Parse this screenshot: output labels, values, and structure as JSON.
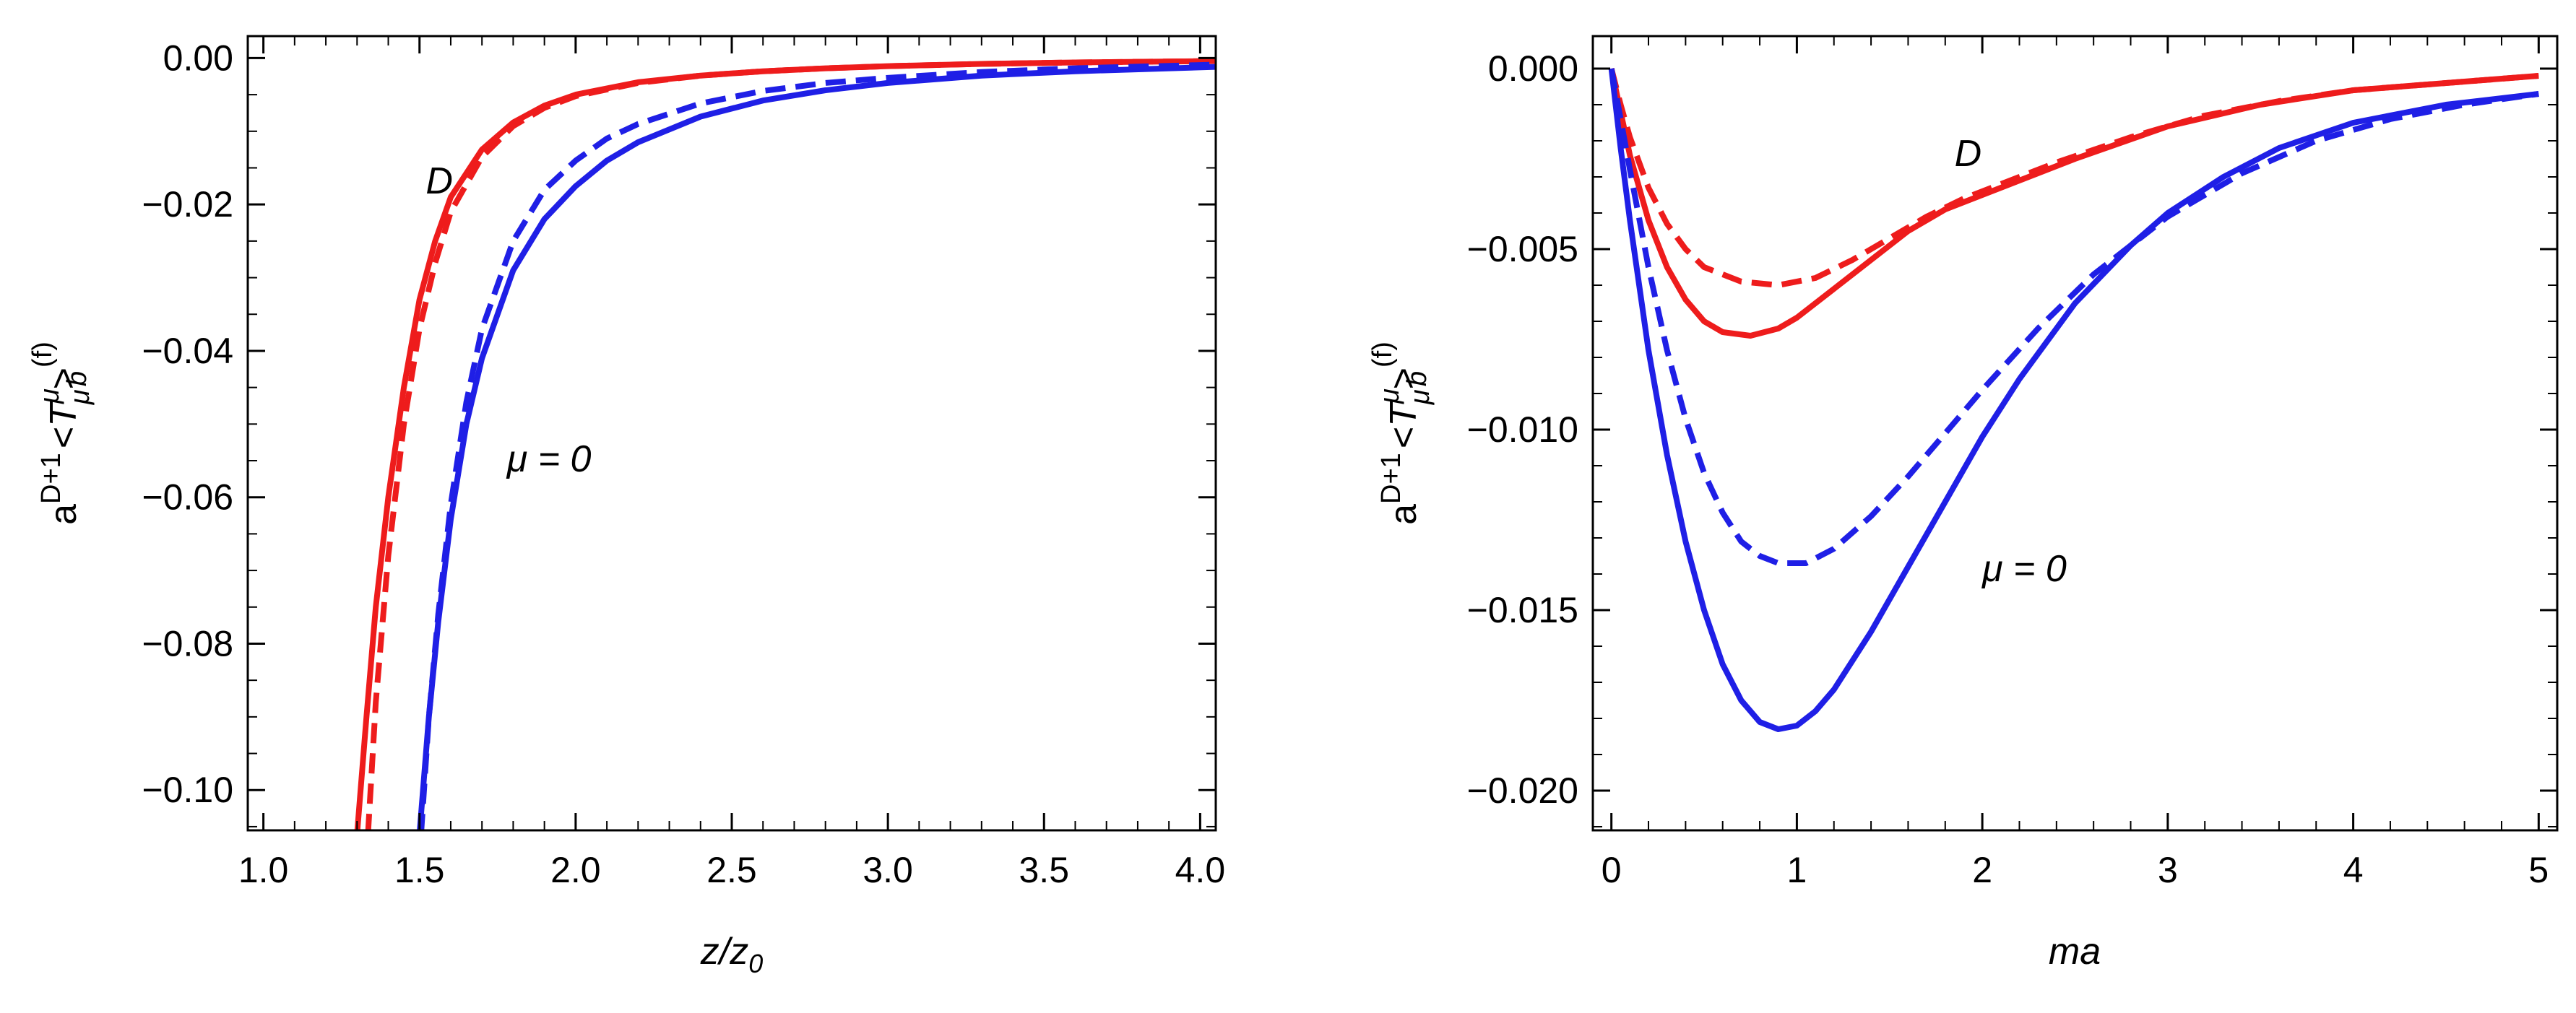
{
  "figure": {
    "colors": {
      "red": "#ee1c1c",
      "blue": "#1f1fe6",
      "frame": "#000000"
    }
  },
  "chart_data": [
    {
      "type": "line",
      "panel": "left",
      "xlabel": "z/z",
      "xlabel_sub": "0",
      "ylabel": {
        "base": "a",
        "base_sup": "D+1",
        "bracket_open": "<",
        "core": "T",
        "core_sup": "μ",
        "core_sub": "μ",
        "bracket_close": ">",
        "outer_sup": "(f)",
        "outer_sub": "b"
      },
      "xlim": [
        0.95,
        4.05
      ],
      "ylim": [
        -0.1055,
        0.003
      ],
      "xticks": [
        1.0,
        1.5,
        2.0,
        2.5,
        3.0,
        3.5,
        4.0
      ],
      "xtick_labels": [
        "1.0",
        "1.5",
        "2.0",
        "2.5",
        "3.0",
        "3.5",
        "4.0"
      ],
      "yticks": [
        0.0,
        -0.02,
        -0.04,
        -0.06,
        -0.08,
        -0.1
      ],
      "ytick_labels": [
        "0.00",
        "−0.02",
        "−0.04",
        "−0.06",
        "−0.08",
        "−0.10"
      ],
      "annotations": [
        {
          "text": "D",
          "x": 1.52,
          "y": -0.0185
        },
        {
          "text": "μ = 0",
          "x": 1.78,
          "y": -0.0565
        }
      ],
      "series": [
        {
          "name": "D, solid",
          "color": "red",
          "style": "solid",
          "x": [
            1.3,
            1.33,
            1.36,
            1.4,
            1.45,
            1.5,
            1.55,
            1.6,
            1.7,
            1.8,
            1.9,
            2.0,
            2.2,
            2.4,
            2.6,
            2.8,
            3.0,
            3.3,
            3.6,
            4.05
          ],
          "y": [
            -0.106,
            -0.09,
            -0.075,
            -0.06,
            -0.045,
            -0.033,
            -0.025,
            -0.019,
            -0.0125,
            -0.0088,
            -0.0065,
            -0.005,
            -0.0033,
            -0.0024,
            -0.0018,
            -0.0014,
            -0.0011,
            -0.0008,
            -0.0006,
            -0.0004
          ]
        },
        {
          "name": "D, dashed",
          "color": "red",
          "style": "dashed",
          "x": [
            1.335,
            1.36,
            1.4,
            1.45,
            1.5,
            1.55,
            1.6,
            1.7,
            1.8,
            1.9,
            2.0,
            2.2,
            2.4,
            2.6,
            2.8,
            3.0,
            3.3,
            3.6,
            4.05
          ],
          "y": [
            -0.106,
            -0.088,
            -0.068,
            -0.05,
            -0.037,
            -0.028,
            -0.021,
            -0.0135,
            -0.0093,
            -0.0068,
            -0.0052,
            -0.0034,
            -0.0024,
            -0.0018,
            -0.0014,
            -0.0011,
            -0.0008,
            -0.0006,
            -0.0004
          ]
        },
        {
          "name": "μ = 0, solid",
          "color": "blue",
          "style": "solid",
          "x": [
            1.5,
            1.53,
            1.56,
            1.6,
            1.65,
            1.7,
            1.8,
            1.9,
            2.0,
            2.1,
            2.2,
            2.4,
            2.6,
            2.8,
            3.0,
            3.3,
            3.6,
            4.05
          ],
          "y": [
            -0.106,
            -0.09,
            -0.077,
            -0.063,
            -0.05,
            -0.041,
            -0.029,
            -0.022,
            -0.0175,
            -0.014,
            -0.0115,
            -0.008,
            -0.0058,
            -0.0044,
            -0.0034,
            -0.0024,
            -0.0018,
            -0.0012
          ]
        },
        {
          "name": "μ = 0, dashed",
          "color": "blue",
          "style": "dashed",
          "x": [
            1.505,
            1.53,
            1.56,
            1.6,
            1.65,
            1.7,
            1.8,
            1.9,
            2.0,
            2.1,
            2.2,
            2.4,
            2.6,
            2.8,
            3.0,
            3.3,
            3.6,
            4.05
          ],
          "y": [
            -0.106,
            -0.09,
            -0.076,
            -0.061,
            -0.047,
            -0.037,
            -0.025,
            -0.018,
            -0.014,
            -0.011,
            -0.009,
            -0.0062,
            -0.0045,
            -0.0034,
            -0.0027,
            -0.0019,
            -0.0014,
            -0.0009
          ]
        }
      ]
    },
    {
      "type": "line",
      "panel": "right",
      "xlabel": "ma",
      "ylabel": {
        "base": "a",
        "base_sup": "D+1",
        "bracket_open": "<",
        "core": "T",
        "core_sup": "μ",
        "core_sub": "μ",
        "bracket_close": ">",
        "outer_sup": "(f)",
        "outer_sub": "b"
      },
      "xlim": [
        -0.1,
        5.1
      ],
      "ylim": [
        -0.0211,
        0.0009
      ],
      "xticks": [
        0,
        1,
        2,
        3,
        4,
        5
      ],
      "xtick_labels": [
        "0",
        "1",
        "2",
        "3",
        "4",
        "5"
      ],
      "yticks": [
        0.0,
        -0.005,
        -0.01,
        -0.015,
        -0.02
      ],
      "ytick_labels": [
        "0.000",
        "−0.005",
        "−0.010",
        "−0.015",
        "−0.020"
      ],
      "annotations": [
        {
          "text": "D",
          "x": 1.85,
          "y": -0.0027
        },
        {
          "text": "μ = 0",
          "x": 2.0,
          "y": -0.0142
        }
      ],
      "series": [
        {
          "name": "D, solid",
          "color": "red",
          "style": "solid",
          "x": [
            0.0,
            0.05,
            0.1,
            0.2,
            0.3,
            0.4,
            0.5,
            0.6,
            0.75,
            0.9,
            1.0,
            1.2,
            1.4,
            1.6,
            1.8,
            2.0,
            2.2,
            2.5,
            3.0,
            3.5,
            4.0,
            4.5,
            5.0
          ],
          "y": [
            0.0,
            -0.0012,
            -0.0024,
            -0.0042,
            -0.0055,
            -0.0064,
            -0.007,
            -0.0073,
            -0.0074,
            -0.0072,
            -0.0069,
            -0.0061,
            -0.0053,
            -0.0045,
            -0.0039,
            -0.0035,
            -0.0031,
            -0.0025,
            -0.0016,
            -0.001,
            -0.0006,
            -0.0004,
            -0.0002
          ]
        },
        {
          "name": "D, dashed",
          "color": "red",
          "style": "dashed",
          "x": [
            0.0,
            0.05,
            0.1,
            0.2,
            0.3,
            0.4,
            0.5,
            0.7,
            0.9,
            1.1,
            1.3,
            1.5,
            1.7,
            1.9,
            2.1,
            2.4,
            2.8,
            3.2,
            3.6,
            4.0,
            4.5,
            5.0
          ],
          "y": [
            0.0,
            -0.001,
            -0.0019,
            -0.0033,
            -0.0043,
            -0.005,
            -0.0055,
            -0.0059,
            -0.006,
            -0.0058,
            -0.0053,
            -0.0047,
            -0.0041,
            -0.0036,
            -0.0032,
            -0.0026,
            -0.0019,
            -0.0013,
            -0.0009,
            -0.0006,
            -0.0004,
            -0.0002
          ]
        },
        {
          "name": "μ = 0, solid",
          "color": "blue",
          "style": "solid",
          "x": [
            0.0,
            0.05,
            0.1,
            0.2,
            0.3,
            0.4,
            0.5,
            0.6,
            0.7,
            0.8,
            0.9,
            1.0,
            1.1,
            1.2,
            1.4,
            1.6,
            1.8,
            2.0,
            2.2,
            2.5,
            2.8,
            3.0,
            3.3,
            3.6,
            4.0,
            4.5,
            5.0
          ],
          "y": [
            0.0,
            -0.0022,
            -0.0042,
            -0.0078,
            -0.0107,
            -0.0131,
            -0.015,
            -0.0165,
            -0.0175,
            -0.0181,
            -0.0183,
            -0.0182,
            -0.0178,
            -0.0172,
            -0.0156,
            -0.0138,
            -0.012,
            -0.0102,
            -0.0086,
            -0.0065,
            -0.0049,
            -0.004,
            -0.003,
            -0.0022,
            -0.0015,
            -0.001,
            -0.0007
          ]
        },
        {
          "name": "μ = 0, dashed",
          "color": "blue",
          "style": "dashed",
          "x": [
            0.0,
            0.05,
            0.1,
            0.2,
            0.3,
            0.4,
            0.5,
            0.6,
            0.7,
            0.8,
            0.9,
            1.05,
            1.2,
            1.4,
            1.6,
            1.8,
            2.0,
            2.3,
            2.6,
            3.0,
            3.4,
            3.8,
            4.2,
            4.6,
            5.0
          ],
          "y": [
            0.0,
            -0.0014,
            -0.0028,
            -0.0055,
            -0.0078,
            -0.0097,
            -0.0112,
            -0.0123,
            -0.0131,
            -0.0135,
            -0.0137,
            -0.0137,
            -0.0133,
            -0.0124,
            -0.0113,
            -0.0101,
            -0.0089,
            -0.0072,
            -0.0057,
            -0.0041,
            -0.0029,
            -0.002,
            -0.0014,
            -0.001,
            -0.0007
          ]
        }
      ]
    }
  ]
}
